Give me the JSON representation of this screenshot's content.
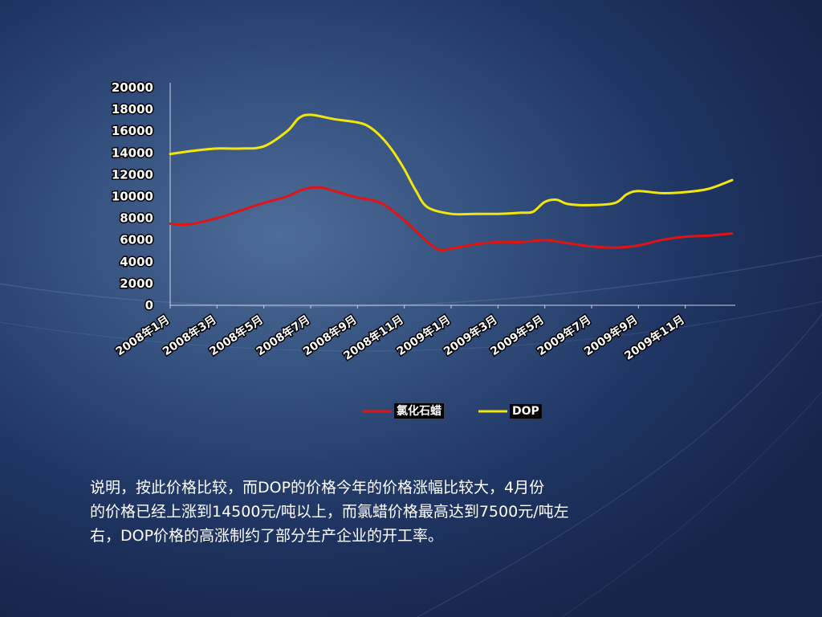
{
  "chart_data": {
    "type": "line",
    "title": "",
    "xlabel": "",
    "ylabel": "",
    "ylim": [
      0,
      20000
    ],
    "yticks": [
      0,
      2000,
      4000,
      6000,
      8000,
      10000,
      12000,
      14000,
      16000,
      18000,
      20000
    ],
    "x_tick_labels": [
      "2008年1月",
      "2008年3月",
      "2008年5月",
      "2008年7月",
      "2008年9月",
      "2008年11月",
      "2009年1月",
      "2009年3月",
      "2009年5月",
      "2009年7月",
      "2009年9月",
      "2009年11月"
    ],
    "x_tick_positions": [
      0,
      2,
      4,
      6,
      8,
      10,
      12,
      14,
      16,
      18,
      20,
      22
    ],
    "grid": false,
    "legend": "bottom",
    "series": [
      {
        "name": "氯化石蜡",
        "color": "#e01414",
        "x": [
          0,
          0.5,
          1,
          2,
          3,
          4,
          5,
          5.5,
          6,
          6.5,
          7,
          8,
          9,
          10,
          11,
          11.5,
          12,
          13,
          14,
          15,
          16,
          17,
          18,
          19,
          20,
          21,
          22,
          23,
          24
        ],
        "values": [
          7500,
          7400,
          7500,
          8000,
          8700,
          9400,
          10000,
          10500,
          10800,
          10800,
          10500,
          9900,
          9400,
          7800,
          5800,
          5100,
          5200,
          5600,
          5800,
          5800,
          6000,
          5700,
          5400,
          5300,
          5500,
          6000,
          6300,
          6400,
          6600
        ]
      },
      {
        "name": "DOP",
        "color": "#f2e60a",
        "x": [
          0,
          1,
          2,
          3,
          4,
          5,
          5.5,
          6,
          7,
          8,
          8.5,
          9,
          9.5,
          10,
          10.5,
          11,
          12,
          13,
          14,
          15,
          15.5,
          16,
          16.5,
          17,
          18,
          19,
          19.5,
          20,
          21,
          22,
          23,
          24
        ],
        "values": [
          13900,
          14200,
          14400,
          14400,
          14600,
          16000,
          17200,
          17500,
          17100,
          16800,
          16400,
          15500,
          14200,
          12500,
          10500,
          9000,
          8400,
          8400,
          8400,
          8500,
          8600,
          9500,
          9700,
          9300,
          9200,
          9400,
          10200,
          10500,
          10300,
          10400,
          10700,
          11500
        ]
      }
    ]
  },
  "caption_lines": [
    "说明，按此价格比较，而DOP的价格今年的价格涨幅比较大，4月份",
    "的价格已经上涨到14500元/吨以上，而氯蜡价格最高达到7500元/吨左",
    "右，DOP价格的高涨制约了部分生产企业的开工率。"
  ]
}
